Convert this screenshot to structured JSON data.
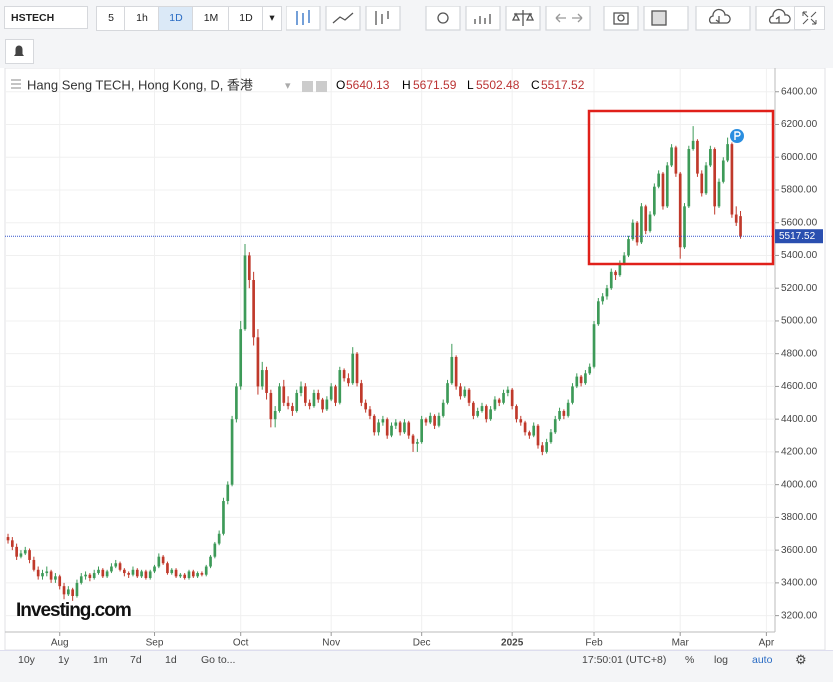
{
  "toolbar": {
    "symbol": "HSTECH",
    "intervals": [
      "5",
      "1h",
      "1D",
      "1M",
      "1D"
    ]
  },
  "legend": {
    "title": "Hang Seng TECH, Hong Kong, D, 香港",
    "labels": [
      "O",
      "H",
      "L",
      "C"
    ]
  },
  "logo": "Investing.com",
  "footer": {
    "ranges": [
      "10y",
      "1y",
      "1m",
      "7d",
      "1d"
    ],
    "goto": "Go to...",
    "time": "17:50:01 (UTC+8)",
    "options": [
      "%",
      "log",
      "auto"
    ]
  },
  "chart_data": {
    "type": "candlestick",
    "up_color": "#3d9a58",
    "down_color": "#c0392b",
    "xlim": [
      -0.7,
      178
    ],
    "xticks": [
      {
        "value": 12,
        "label": "Aug"
      },
      {
        "value": 34,
        "label": "Sep"
      },
      {
        "value": 54,
        "label": "Oct"
      },
      {
        "value": 75,
        "label": "Nov"
      },
      {
        "value": 96,
        "label": "Dec"
      },
      {
        "value": 117,
        "label": "2025"
      },
      {
        "value": 136,
        "label": "Feb"
      },
      {
        "value": 156,
        "label": "Mar"
      },
      {
        "value": 176,
        "label": "Apr"
      }
    ],
    "ylim": [
      3100,
      6545
    ],
    "yticks": [
      {
        "value": 3200,
        "label": "3200.00"
      },
      {
        "value": 3400,
        "label": "3400.00"
      },
      {
        "value": 3600,
        "label": "3600.00"
      },
      {
        "value": 3800,
        "label": "3800.00"
      },
      {
        "value": 4000,
        "label": "4000.00"
      },
      {
        "value": 4200,
        "label": "4200.00"
      },
      {
        "value": 4400,
        "label": "4400.00"
      },
      {
        "value": 4600,
        "label": "4600.00"
      },
      {
        "value": 4800,
        "label": "4800.00"
      },
      {
        "value": 5000,
        "label": "5000.00"
      },
      {
        "value": 5200,
        "label": "5200.00"
      },
      {
        "value": 5400,
        "label": "5400.00"
      },
      {
        "value": 5600,
        "label": "5600.00"
      },
      {
        "value": 5800,
        "label": "5800.00"
      },
      {
        "value": 6000,
        "label": "6000.00"
      },
      {
        "value": 6200,
        "label": "6200.00"
      },
      {
        "value": 6400,
        "label": "6400.00"
      }
    ],
    "ohlc": [
      [
        3680,
        3700,
        3640,
        3660
      ],
      [
        3660,
        3680,
        3600,
        3620
      ],
      [
        3620,
        3640,
        3540,
        3560
      ],
      [
        3560,
        3600,
        3550,
        3580
      ],
      [
        3580,
        3620,
        3570,
        3600
      ],
      [
        3600,
        3610,
        3520,
        3540
      ],
      [
        3540,
        3560,
        3470,
        3480
      ],
      [
        3480,
        3500,
        3420,
        3440
      ],
      [
        3440,
        3480,
        3420,
        3460
      ],
      [
        3460,
        3500,
        3440,
        3470
      ],
      [
        3470,
        3480,
        3400,
        3420
      ],
      [
        3420,
        3460,
        3400,
        3440
      ],
      [
        3440,
        3450,
        3360,
        3380
      ],
      [
        3380,
        3400,
        3300,
        3330
      ],
      [
        3330,
        3380,
        3320,
        3360
      ],
      [
        3360,
        3370,
        3290,
        3320
      ],
      [
        3320,
        3420,
        3310,
        3400
      ],
      [
        3400,
        3460,
        3390,
        3440
      ],
      [
        3440,
        3470,
        3420,
        3450
      ],
      [
        3450,
        3460,
        3410,
        3430
      ],
      [
        3430,
        3480,
        3420,
        3460
      ],
      [
        3460,
        3500,
        3450,
        3480
      ],
      [
        3480,
        3490,
        3430,
        3440
      ],
      [
        3440,
        3480,
        3430,
        3470
      ],
      [
        3470,
        3520,
        3460,
        3500
      ],
      [
        3500,
        3540,
        3490,
        3520
      ],
      [
        3520,
        3530,
        3470,
        3480
      ],
      [
        3480,
        3490,
        3440,
        3460
      ],
      [
        3460,
        3470,
        3430,
        3450
      ],
      [
        3450,
        3500,
        3440,
        3480
      ],
      [
        3480,
        3490,
        3430,
        3440
      ],
      [
        3440,
        3480,
        3430,
        3470
      ],
      [
        3470,
        3480,
        3420,
        3430
      ],
      [
        3430,
        3480,
        3420,
        3470
      ],
      [
        3470,
        3510,
        3460,
        3500
      ],
      [
        3500,
        3580,
        3490,
        3560
      ],
      [
        3560,
        3570,
        3510,
        3520
      ],
      [
        3520,
        3530,
        3450,
        3460
      ],
      [
        3460,
        3490,
        3450,
        3480
      ],
      [
        3480,
        3490,
        3430,
        3440
      ],
      [
        3440,
        3460,
        3430,
        3450
      ],
      [
        3450,
        3460,
        3420,
        3430
      ],
      [
        3430,
        3480,
        3420,
        3470
      ],
      [
        3470,
        3480,
        3430,
        3440
      ],
      [
        3440,
        3470,
        3430,
        3460
      ],
      [
        3460,
        3470,
        3440,
        3450
      ],
      [
        3450,
        3510,
        3440,
        3500
      ],
      [
        3500,
        3570,
        3490,
        3560
      ],
      [
        3560,
        3650,
        3550,
        3640
      ],
      [
        3640,
        3720,
        3630,
        3700
      ],
      [
        3700,
        3920,
        3690,
        3900
      ],
      [
        3900,
        4020,
        3880,
        4000
      ],
      [
        4000,
        4420,
        3990,
        4400
      ],
      [
        4400,
        4620,
        4380,
        4600
      ],
      [
        4600,
        5000,
        4580,
        4950
      ],
      [
        4950,
        5470,
        4940,
        5400
      ],
      [
        5400,
        5420,
        5200,
        5250
      ],
      [
        5250,
        5300,
        4850,
        4900
      ],
      [
        4900,
        4950,
        4550,
        4600
      ],
      [
        4600,
        4750,
        4580,
        4700
      ],
      [
        4700,
        4720,
        4520,
        4560
      ],
      [
        4560,
        4580,
        4350,
        4400
      ],
      [
        4400,
        4480,
        4350,
        4450
      ],
      [
        4450,
        4620,
        4440,
        4600
      ],
      [
        4600,
        4640,
        4480,
        4500
      ],
      [
        4500,
        4540,
        4460,
        4480
      ],
      [
        4480,
        4500,
        4420,
        4450
      ],
      [
        4450,
        4580,
        4440,
        4560
      ],
      [
        4560,
        4630,
        4540,
        4600
      ],
      [
        4600,
        4620,
        4480,
        4500
      ],
      [
        4500,
        4520,
        4460,
        4480
      ],
      [
        4480,
        4580,
        4470,
        4560
      ],
      [
        4560,
        4580,
        4500,
        4520
      ],
      [
        4520,
        4530,
        4440,
        4460
      ],
      [
        4460,
        4540,
        4450,
        4520
      ],
      [
        4520,
        4620,
        4510,
        4600
      ],
      [
        4600,
        4610,
        4480,
        4500
      ],
      [
        4500,
        4720,
        4490,
        4700
      ],
      [
        4700,
        4710,
        4630,
        4650
      ],
      [
        4650,
        4680,
        4600,
        4620
      ],
      [
        4620,
        4840,
        4610,
        4800
      ],
      [
        4800,
        4810,
        4600,
        4620
      ],
      [
        4620,
        4640,
        4480,
        4500
      ],
      [
        4500,
        4520,
        4440,
        4460
      ],
      [
        4460,
        4480,
        4400,
        4420
      ],
      [
        4420,
        4430,
        4300,
        4320
      ],
      [
        4320,
        4400,
        4300,
        4380
      ],
      [
        4380,
        4420,
        4360,
        4400
      ],
      [
        4400,
        4410,
        4280,
        4300
      ],
      [
        4300,
        4380,
        4290,
        4360
      ],
      [
        4360,
        4400,
        4340,
        4380
      ],
      [
        4380,
        4390,
        4300,
        4320
      ],
      [
        4320,
        4400,
        4310,
        4380
      ],
      [
        4380,
        4390,
        4280,
        4300
      ],
      [
        4300,
        4310,
        4200,
        4250
      ],
      [
        4250,
        4280,
        4200,
        4260
      ],
      [
        4260,
        4420,
        4250,
        4400
      ],
      [
        4400,
        4410,
        4360,
        4380
      ],
      [
        4380,
        4440,
        4370,
        4420
      ],
      [
        4420,
        4430,
        4340,
        4360
      ],
      [
        4360,
        4440,
        4350,
        4420
      ],
      [
        4420,
        4520,
        4410,
        4500
      ],
      [
        4500,
        4640,
        4490,
        4620
      ],
      [
        4620,
        4860,
        4610,
        4780
      ],
      [
        4780,
        4790,
        4580,
        4600
      ],
      [
        4600,
        4620,
        4520,
        4540
      ],
      [
        4540,
        4600,
        4530,
        4580
      ],
      [
        4580,
        4590,
        4480,
        4500
      ],
      [
        4500,
        4510,
        4400,
        4420
      ],
      [
        4420,
        4470,
        4410,
        4450
      ],
      [
        4450,
        4500,
        4440,
        4480
      ],
      [
        4480,
        4490,
        4380,
        4400
      ],
      [
        4400,
        4480,
        4390,
        4460
      ],
      [
        4460,
        4540,
        4450,
        4520
      ],
      [
        4520,
        4530,
        4480,
        4500
      ],
      [
        4500,
        4580,
        4490,
        4560
      ],
      [
        4560,
        4600,
        4540,
        4580
      ],
      [
        4580,
        4590,
        4460,
        4480
      ],
      [
        4480,
        4490,
        4380,
        4400
      ],
      [
        4400,
        4420,
        4360,
        4380
      ],
      [
        4380,
        4390,
        4300,
        4320
      ],
      [
        4320,
        4330,
        4280,
        4300
      ],
      [
        4300,
        4380,
        4290,
        4360
      ],
      [
        4360,
        4370,
        4220,
        4240
      ],
      [
        4240,
        4260,
        4180,
        4200
      ],
      [
        4200,
        4280,
        4190,
        4260
      ],
      [
        4260,
        4340,
        4250,
        4320
      ],
      [
        4320,
        4420,
        4310,
        4400
      ],
      [
        4400,
        4470,
        4390,
        4450
      ],
      [
        4450,
        4460,
        4400,
        4420
      ],
      [
        4420,
        4520,
        4410,
        4500
      ],
      [
        4500,
        4620,
        4490,
        4600
      ],
      [
        4600,
        4680,
        4590,
        4660
      ],
      [
        4660,
        4670,
        4600,
        4620
      ],
      [
        4620,
        4700,
        4610,
        4680
      ],
      [
        4680,
        4740,
        4670,
        4720
      ],
      [
        4720,
        5000,
        4710,
        4980
      ],
      [
        4980,
        5140,
        4970,
        5120
      ],
      [
        5120,
        5170,
        5100,
        5150
      ],
      [
        5150,
        5220,
        5130,
        5200
      ],
      [
        5200,
        5320,
        5190,
        5300
      ],
      [
        5300,
        5310,
        5250,
        5280
      ],
      [
        5280,
        5370,
        5270,
        5350
      ],
      [
        5350,
        5420,
        5340,
        5400
      ],
      [
        5400,
        5520,
        5390,
        5500
      ],
      [
        5500,
        5620,
        5490,
        5600
      ],
      [
        5600,
        5610,
        5460,
        5480
      ],
      [
        5480,
        5720,
        5470,
        5700
      ],
      [
        5700,
        5710,
        5530,
        5550
      ],
      [
        5550,
        5670,
        5540,
        5650
      ],
      [
        5650,
        5840,
        5640,
        5820
      ],
      [
        5820,
        5920,
        5810,
        5900
      ],
      [
        5900,
        5910,
        5680,
        5700
      ],
      [
        5700,
        5970,
        5690,
        5950
      ],
      [
        5950,
        6080,
        5940,
        6060
      ],
      [
        6060,
        6070,
        5880,
        5900
      ],
      [
        5900,
        5910,
        5380,
        5450
      ],
      [
        5450,
        5720,
        5440,
        5700
      ],
      [
        5700,
        6070,
        5690,
        6050
      ],
      [
        6050,
        6190,
        6040,
        6100
      ],
      [
        6100,
        6110,
        5880,
        5900
      ],
      [
        5900,
        5920,
        5760,
        5780
      ],
      [
        5780,
        5970,
        5770,
        5950
      ],
      [
        5950,
        6070,
        5940,
        6050
      ],
      [
        6050,
        6060,
        5650,
        5700
      ],
      [
        5700,
        5870,
        5690,
        5850
      ],
      [
        5850,
        6000,
        5840,
        5980
      ],
      [
        5980,
        6120,
        5970,
        6080
      ],
      [
        6080,
        6090,
        5630,
        5650
      ],
      [
        5650,
        5700,
        5580,
        5600
      ],
      [
        5640.13,
        5671.59,
        5502.48,
        5517.52
      ]
    ]
  }
}
